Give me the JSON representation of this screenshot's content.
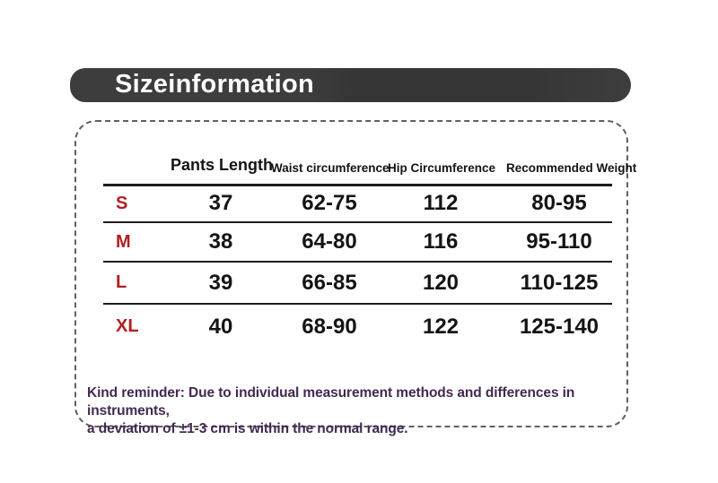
{
  "banner": {
    "title": "Sizeinformation",
    "bg_color": "#3b3b3b",
    "text_color": "#ffffff"
  },
  "chart_data": {
    "type": "table",
    "title": "Sizeinformation",
    "columns": [
      "",
      "Pants Length",
      "Waist circumference",
      "Hip Circumference",
      "Recommended Weight"
    ],
    "rows": [
      [
        "S",
        "37",
        "62-75",
        "112",
        "80-95"
      ],
      [
        "M",
        "38",
        "64-80",
        "116",
        "95-110"
      ],
      [
        "L",
        "39",
        "66-85",
        "120",
        "110-125"
      ],
      [
        "XL",
        "40",
        "68-90",
        "122",
        "125-140"
      ]
    ],
    "footnote": "Kind reminder: Due to individual measurement methods and differences in instruments, a deviation of ±1-3 cm is within the normal range."
  },
  "note": {
    "line1": "Kind reminder: Due to individual measurement methods and differences in instruments,",
    "line2": "a deviation of ±1-3 cm is within the normal range."
  },
  "colors": {
    "banner_bg": "#3b3b3b",
    "size_label": "#b01f24",
    "table_text": "#141414",
    "rule": "#1c1c1c",
    "dashed_border": "#606060",
    "note_text": "#412a50",
    "page_bg": "#ffffff"
  }
}
